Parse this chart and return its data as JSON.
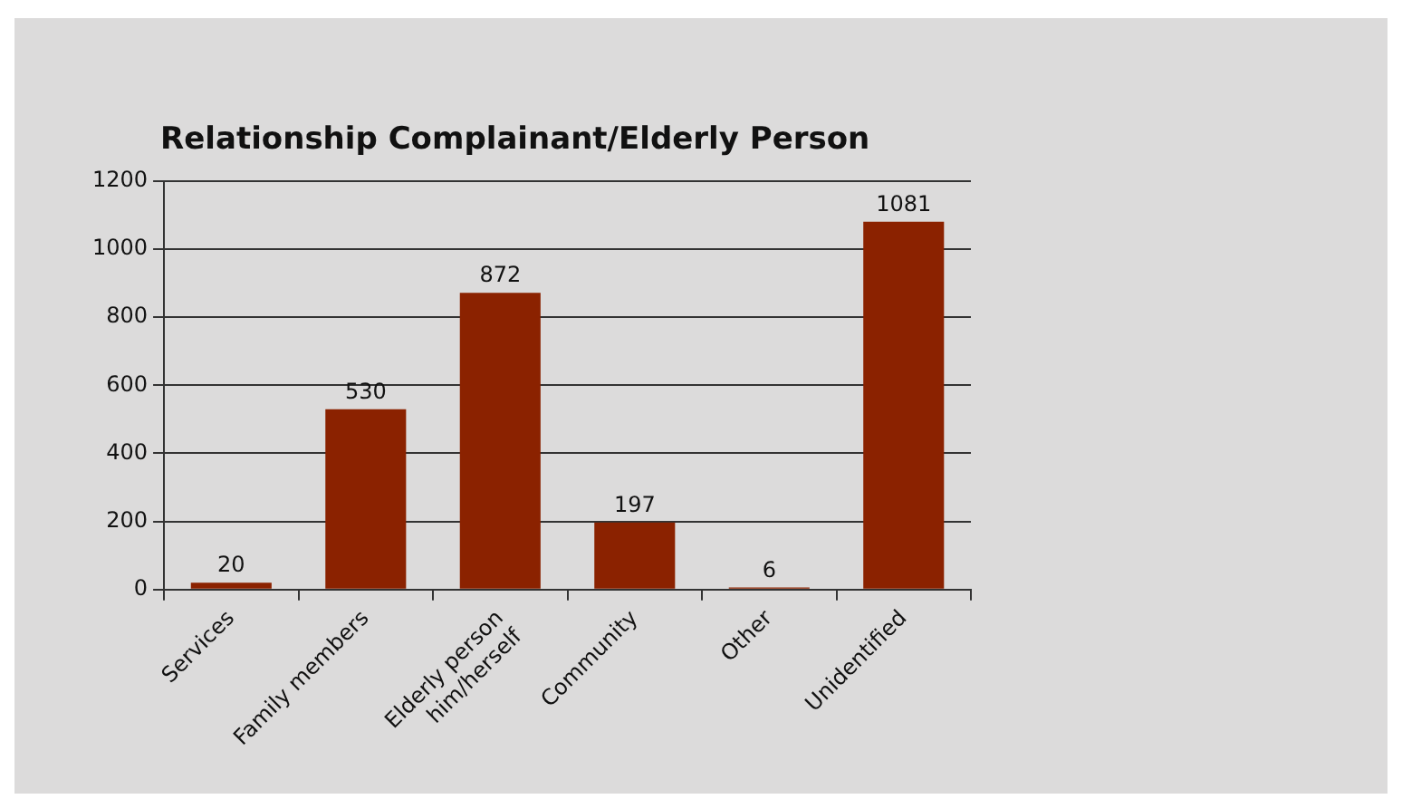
{
  "chart_data": {
    "type": "bar",
    "title": "Relationship Complainant/Elderly Person",
    "categories": [
      "Services",
      "Family members",
      "Elderly person\nhim/herself",
      "Community",
      "Other",
      "Unidentified"
    ],
    "values": [
      20,
      530,
      872,
      197,
      6,
      1081
    ],
    "color": "#8b2200",
    "ylim": [
      0,
      1200
    ],
    "yticks": [
      0,
      200,
      400,
      600,
      800,
      1000,
      1200
    ],
    "grid": "y",
    "data_labels": true,
    "legend": false
  }
}
